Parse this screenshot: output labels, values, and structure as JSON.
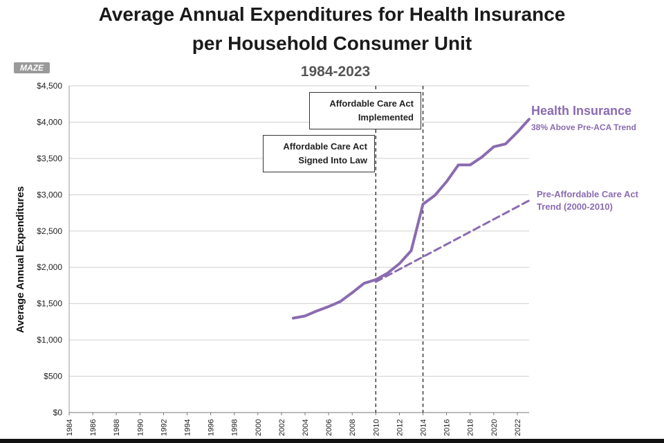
{
  "title_line1": "Average Annual Expenditures for Health Insurance",
  "title_line2": "per Household Consumer Unit",
  "subtitle": "1984-2023",
  "brand": "MAZE",
  "annotations": {
    "implemented": "Affordable Care Act Implemented",
    "signed": "Affordable Care Act Signed Into Law"
  },
  "series_labels": {
    "health_insurance": "Health Insurance",
    "health_insurance_note": "38% Above Pre-ACA Trend",
    "trend": "Pre-Affordable Care Act Trend (2000-2010)"
  },
  "colors": {
    "health_line": "#8a6bb0",
    "trend_line": "#8a6bb0",
    "grid": "#cfcfcf",
    "axis_text": "#222222"
  },
  "chart_data": {
    "type": "line",
    "ylabel": "Average Annual Expenditures",
    "ylim": [
      0,
      4500
    ],
    "xlim": [
      1984,
      2023
    ],
    "y_ticks": [
      "$0",
      "$500",
      "$1,000",
      "$1,500",
      "$2,000",
      "$2,500",
      "$3,000",
      "$3,500",
      "$4,000",
      "$4,500"
    ],
    "x_ticks": [
      "1984",
      "1986",
      "1988",
      "1990",
      "1992",
      "1994",
      "1996",
      "1998",
      "2000",
      "2002",
      "2004",
      "2006",
      "2008",
      "2010",
      "2012",
      "2014",
      "2016",
      "2018",
      "2020",
      "2022"
    ],
    "vertical_markers": [
      2010,
      2014
    ],
    "grid": true,
    "series": [
      {
        "name": "Health Insurance",
        "style": "solid",
        "x": [
          2003,
          2004,
          2005,
          2006,
          2007,
          2008,
          2009,
          2010,
          2011,
          2012,
          2013,
          2014,
          2015,
          2016,
          2017,
          2018,
          2019,
          2020,
          2021,
          2022,
          2023
        ],
        "values": [
          1300,
          1330,
          1400,
          1460,
          1530,
          1650,
          1780,
          1830,
          1920,
          2050,
          2230,
          2870,
          2990,
          3180,
          3410,
          3410,
          3520,
          3660,
          3700,
          3860,
          4040
        ]
      },
      {
        "name": "Pre-Affordable Care Act Trend (2000-2010)",
        "style": "dashed",
        "x": [
          2010,
          2023
        ],
        "values": [
          1800,
          2920
        ]
      }
    ]
  }
}
